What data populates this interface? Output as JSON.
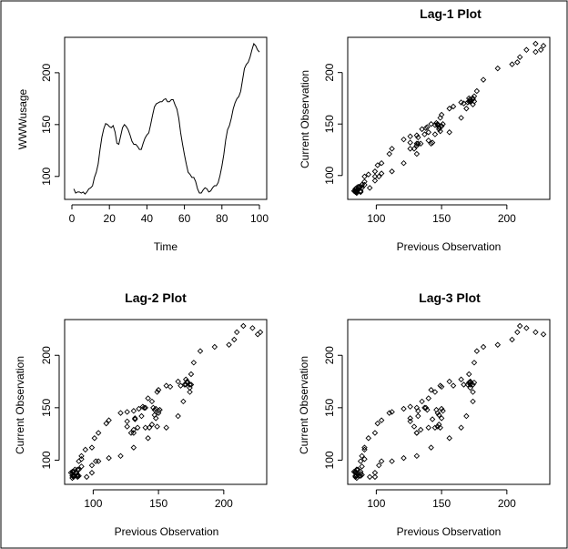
{
  "chart_data": [
    {
      "type": "line",
      "title": "",
      "xlabel": "Time",
      "ylabel": "WWWusage",
      "xlim": [
        0,
        100
      ],
      "ylim": [
        84,
        228
      ],
      "xticks": [
        0,
        20,
        40,
        60,
        80,
        100
      ],
      "yticks": [
        100,
        150,
        200
      ],
      "series": [
        {
          "x": [
            1,
            2,
            3,
            4,
            5,
            6,
            7,
            8,
            9,
            10,
            11,
            12,
            13,
            14,
            15,
            16,
            17,
            18,
            19,
            20,
            21,
            22,
            23,
            24,
            25,
            26,
            27,
            28,
            29,
            30,
            31,
            32,
            33,
            34,
            35,
            36,
            37,
            38,
            39,
            40,
            41,
            42,
            43,
            44,
            45,
            46,
            47,
            48,
            49,
            50,
            51,
            52,
            53,
            54,
            55,
            56,
            57,
            58,
            59,
            60,
            61,
            62,
            63,
            64,
            65,
            66,
            67,
            68,
            69,
            70,
            71,
            72,
            73,
            74,
            75,
            76,
            77,
            78,
            79,
            80,
            81,
            82,
            83,
            84,
            85,
            86,
            87,
            88,
            89,
            90,
            91,
            92,
            93,
            94,
            95,
            96,
            97,
            98,
            99,
            100
          ],
          "values": [
            88,
            84,
            85,
            85,
            84,
            85,
            83,
            85,
            88,
            89,
            91,
            99,
            104,
            112,
            126,
            138,
            146,
            151,
            150,
            148,
            147,
            149,
            143,
            132,
            131,
            139,
            147,
            150,
            148,
            145,
            140,
            134,
            131,
            131,
            129,
            126,
            126,
            132,
            137,
            140,
            142,
            150,
            159,
            167,
            170,
            171,
            172,
            172,
            174,
            175,
            172,
            172,
            174,
            174,
            169,
            165,
            156,
            142,
            131,
            121,
            112,
            104,
            102,
            99,
            99,
            95,
            88,
            84,
            84,
            87,
            89,
            88,
            85,
            86,
            89,
            91,
            91,
            94,
            101,
            110,
            121,
            135,
            145,
            149,
            156,
            165,
            171,
            175,
            177,
            182,
            193,
            204,
            208,
            210,
            215,
            222,
            228,
            226,
            222,
            220
          ]
        }
      ]
    },
    {
      "type": "scatter",
      "title": "Lag-1 Plot",
      "xlabel": "Previous Observation",
      "ylabel": "Current Observation",
      "xlim": [
        83,
        228
      ],
      "ylim": [
        83,
        228
      ],
      "xticks": [
        100,
        150,
        200
      ],
      "yticks": [
        100,
        150,
        200
      ],
      "lag": 1
    },
    {
      "type": "scatter",
      "title": "Lag-2 Plot",
      "xlabel": "Previous Observation",
      "ylabel": "Current Observation",
      "xlim": [
        83,
        228
      ],
      "ylim": [
        83,
        228
      ],
      "xticks": [
        100,
        150,
        200
      ],
      "yticks": [
        100,
        150,
        200
      ],
      "lag": 2
    },
    {
      "type": "scatter",
      "title": "Lag-3 Plot",
      "xlabel": "Previous Observation",
      "ylabel": "Current Observation",
      "xlim": [
        83,
        228
      ],
      "ylim": [
        83,
        228
      ],
      "xticks": [
        100,
        150,
        200
      ],
      "yticks": [
        100,
        150,
        200
      ],
      "lag": 3
    }
  ]
}
